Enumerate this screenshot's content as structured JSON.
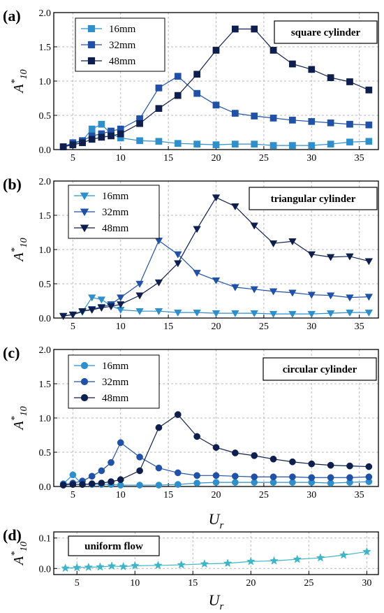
{
  "chart_data": [
    {
      "type": "line",
      "panel_label": "(a)",
      "annotation": "square cylinder",
      "ylabel": "A*10",
      "xlabel": "",
      "xlim": [
        3,
        37
      ],
      "ylim": [
        0,
        2.0
      ],
      "xticks": [
        5,
        10,
        15,
        20,
        25,
        30,
        35
      ],
      "yticks": [
        0.0,
        0.5,
        1.0,
        1.5,
        2.0
      ],
      "yticklabels": [
        "0.0",
        "0.5",
        "1.0",
        "1.5",
        "2.0"
      ],
      "marker": "square",
      "grid": true,
      "legend_placement": "top-left",
      "series": [
        {
          "name": "16mm",
          "color": "#2E8FCB",
          "x": [
            4,
            5,
            6,
            7,
            8,
            9,
            10,
            12,
            14,
            16,
            18,
            20,
            22,
            24,
            26,
            28,
            30,
            32,
            34,
            36
          ],
          "y": [
            0.04,
            0.08,
            0.13,
            0.3,
            0.37,
            0.23,
            0.17,
            0.13,
            0.12,
            0.09,
            0.08,
            0.07,
            0.08,
            0.08,
            0.06,
            0.06,
            0.06,
            0.08,
            0.11,
            0.12
          ]
        },
        {
          "name": "32mm",
          "color": "#2151A6",
          "x": [
            4,
            5,
            6,
            7,
            8,
            9,
            10,
            12,
            14,
            16,
            18,
            20,
            22,
            24,
            26,
            28,
            30,
            32,
            34,
            36
          ],
          "y": [
            0.04,
            0.1,
            0.13,
            0.2,
            0.23,
            0.27,
            0.3,
            0.45,
            0.9,
            1.07,
            0.82,
            0.65,
            0.53,
            0.49,
            0.46,
            0.43,
            0.41,
            0.39,
            0.37,
            0.36
          ]
        },
        {
          "name": "48mm",
          "color": "#0E1F4D",
          "x": [
            4,
            5,
            6,
            7,
            8,
            9,
            10,
            12,
            14,
            16,
            18,
            20,
            22,
            24,
            26,
            28,
            30,
            32,
            34,
            36
          ],
          "y": [
            0.04,
            0.07,
            0.1,
            0.15,
            0.18,
            0.2,
            0.23,
            0.38,
            0.6,
            0.79,
            1.1,
            1.45,
            1.76,
            1.76,
            1.45,
            1.25,
            1.17,
            1.05,
            0.99,
            0.87
          ]
        }
      ]
    },
    {
      "type": "line",
      "panel_label": "(b)",
      "annotation": "triangular cylinder",
      "ylabel": "A*10",
      "xlabel": "",
      "xlim": [
        3,
        37
      ],
      "ylim": [
        0,
        2.0
      ],
      "xticks": [
        5,
        10,
        15,
        20,
        25,
        30,
        35
      ],
      "yticks": [
        0.0,
        0.5,
        1.0,
        1.5,
        2.0
      ],
      "yticklabels": [
        "0.0",
        "0.5",
        "1.0",
        "1.5",
        "2.0"
      ],
      "marker": "triangle-down",
      "grid": true,
      "legend_placement": "top-left",
      "series": [
        {
          "name": "16mm",
          "color": "#2E8FCB",
          "x": [
            4,
            5,
            6,
            7,
            8,
            9,
            10,
            12,
            14,
            16,
            18,
            20,
            22,
            24,
            26,
            28,
            30,
            32,
            34,
            36
          ],
          "y": [
            0.03,
            0.05,
            0.09,
            0.3,
            0.27,
            0.18,
            0.12,
            0.1,
            0.1,
            0.08,
            0.08,
            0.07,
            0.07,
            0.07,
            0.06,
            0.06,
            0.06,
            0.07,
            0.08,
            0.08
          ]
        },
        {
          "name": "32mm",
          "color": "#2151A6",
          "x": [
            4,
            5,
            6,
            7,
            8,
            9,
            10,
            12,
            14,
            16,
            18,
            20,
            22,
            24,
            26,
            28,
            30,
            32,
            34,
            36
          ],
          "y": [
            0.03,
            0.05,
            0.1,
            0.13,
            0.16,
            0.2,
            0.3,
            0.5,
            1.13,
            0.93,
            0.66,
            0.55,
            0.45,
            0.42,
            0.39,
            0.37,
            0.34,
            0.33,
            0.3,
            0.31
          ]
        },
        {
          "name": "48mm",
          "color": "#0E1F4D",
          "x": [
            4,
            5,
            6,
            7,
            8,
            9,
            10,
            12,
            14,
            16,
            18,
            20,
            22,
            24,
            26,
            28,
            30,
            32,
            34,
            36
          ],
          "y": [
            0.03,
            0.05,
            0.1,
            0.12,
            0.15,
            0.17,
            0.2,
            0.33,
            0.52,
            0.8,
            1.3,
            1.76,
            1.63,
            1.35,
            1.09,
            1.12,
            0.93,
            0.89,
            0.9,
            0.83
          ]
        }
      ]
    },
    {
      "type": "line",
      "panel_label": "(c)",
      "annotation": "circular cylinder",
      "ylabel": "A*10",
      "xlabel": "Ur",
      "xlim": [
        3,
        37
      ],
      "ylim": [
        0,
        2.0
      ],
      "xticks": [
        5,
        10,
        15,
        20,
        25,
        30,
        35
      ],
      "yticks": [
        0.0,
        0.5,
        1.0,
        1.5,
        2.0
      ],
      "yticklabels": [
        "0.0",
        "0.5",
        "1.0",
        "1.5",
        "2.0"
      ],
      "marker": "circle",
      "grid": true,
      "legend_placement": "top-left",
      "series": [
        {
          "name": "16mm",
          "color": "#2E8FCB",
          "x": [
            4,
            5,
            6,
            7,
            8,
            9,
            10,
            12,
            14,
            16,
            18,
            20,
            22,
            24,
            26,
            28,
            30,
            32,
            34,
            36
          ],
          "y": [
            0.04,
            0.17,
            0.03,
            0.03,
            0.03,
            0.03,
            0.02,
            0.02,
            0.02,
            0.03,
            0.05,
            0.06,
            0.06,
            0.06,
            0.06,
            0.06,
            0.06,
            0.05,
            0.06,
            0.07
          ]
        },
        {
          "name": "32mm",
          "color": "#2151A6",
          "x": [
            4,
            5,
            6,
            7,
            8,
            9,
            10,
            12,
            14,
            16,
            18,
            20,
            22,
            24,
            26,
            28,
            30,
            32,
            34,
            36
          ],
          "y": [
            0.03,
            0.05,
            0.08,
            0.15,
            0.23,
            0.35,
            0.64,
            0.43,
            0.27,
            0.2,
            0.16,
            0.16,
            0.15,
            0.14,
            0.14,
            0.14,
            0.13,
            0.13,
            0.13,
            0.14
          ]
        },
        {
          "name": "48mm",
          "color": "#0E1F4D",
          "x": [
            4,
            5,
            6,
            7,
            8,
            9,
            10,
            12,
            14,
            16,
            18,
            20,
            22,
            24,
            26,
            28,
            30,
            32,
            34,
            36
          ],
          "y": [
            0.02,
            0.03,
            0.03,
            0.04,
            0.05,
            0.07,
            0.1,
            0.23,
            0.86,
            1.05,
            0.73,
            0.57,
            0.49,
            0.45,
            0.4,
            0.36,
            0.33,
            0.31,
            0.3,
            0.29
          ]
        }
      ]
    },
    {
      "type": "line",
      "panel_label": "(d)",
      "annotation": "uniform flow",
      "ylabel": "A*10",
      "xlabel": "Ur",
      "xlim": [
        3,
        31
      ],
      "ylim": [
        -0.02,
        0.12
      ],
      "xticks": [
        5,
        10,
        15,
        20,
        25,
        30
      ],
      "yticks": [
        0.0,
        0.1
      ],
      "yticklabels": [
        "0.0",
        "0.1"
      ],
      "marker": "star",
      "grid": true,
      "series": [
        {
          "color": "#3DB5C7",
          "x": [
            4,
            5,
            6,
            7,
            8,
            9,
            10,
            12,
            14,
            16,
            18,
            20,
            22,
            24,
            26,
            28,
            30
          ],
          "y": [
            0.001,
            0.003,
            0.004,
            0.005,
            0.008,
            0.006,
            0.009,
            0.01,
            0.012,
            0.015,
            0.017,
            0.023,
            0.025,
            0.03,
            0.035,
            0.044,
            0.055
          ]
        }
      ]
    }
  ]
}
